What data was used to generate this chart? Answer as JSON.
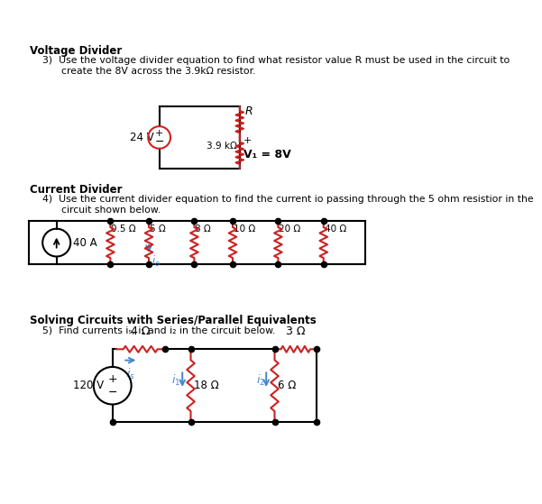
{
  "bg_color": "#ffffff",
  "wire_color": "#000000",
  "resistor_color": "#cc2222",
  "arrow_color": "#4488cc",
  "text_color": "#000000",
  "s1_title": "Voltage Divider",
  "s1_prob": "3)  Use the voltage divider equation to find what resistor value R must be used in the circuit to\n      create the 8V across the 3.9kΩ resistor.",
  "s2_title": "Current Divider",
  "s2_prob": "4)  Use the current divider equation to find the current io passing through the 5 ohm resistior in the\n      circuit shown below.",
  "s3_title": "Solving Circuits with Series/Parallel Equivalents",
  "s3_prob": "5)  Find currents iₛ, i₁ and i₂ in the circuit below."
}
